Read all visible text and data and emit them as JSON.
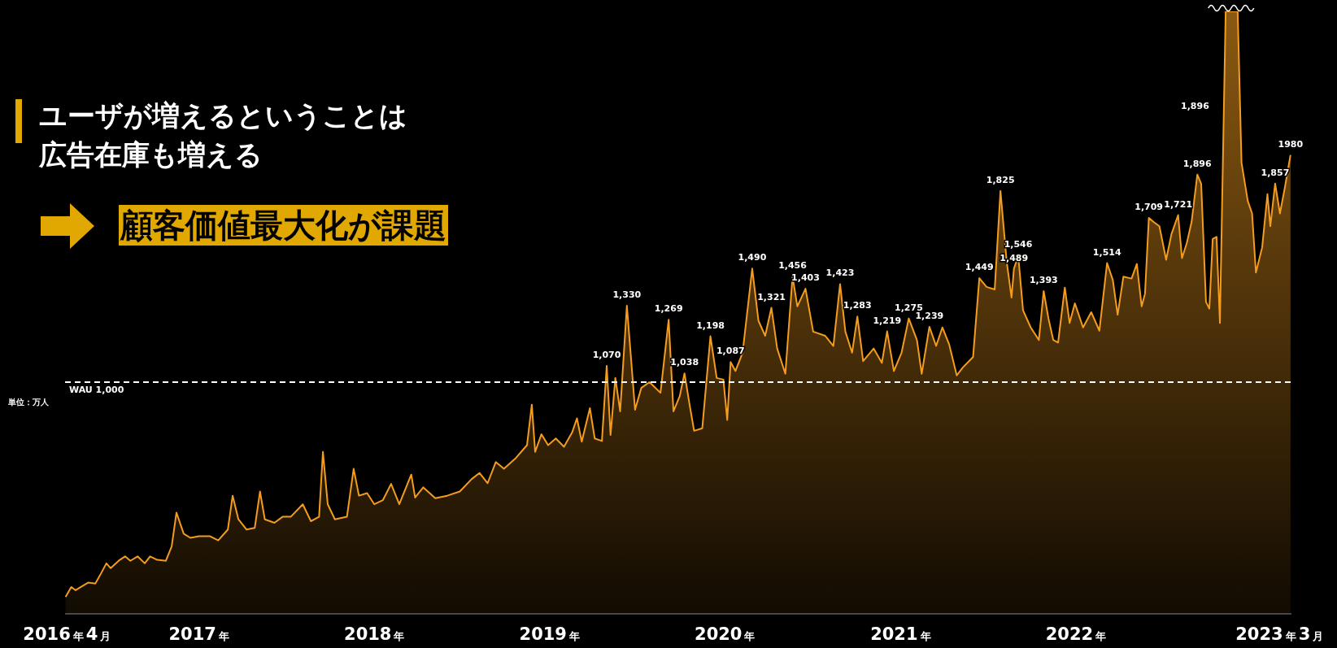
{
  "chart_data": {
    "type": "area",
    "title": "ユーザが増えるということは広告在庫も増える",
    "subtitle": "顧客価値最大化が課題",
    "color": "#f39c1e",
    "marker": "none",
    "line_style": "solid",
    "xlim": [
      "2016-03-28",
      "2023-03-26"
    ],
    "xticks": [
      {
        "value": "2016-04-01",
        "label": "2016年4月"
      },
      {
        "value": "2017-01-01",
        "label": "2017年"
      },
      {
        "value": "2018-01-01",
        "label": "2018年"
      },
      {
        "value": "2019-01-01",
        "label": "2019年"
      },
      {
        "value": "2020-01-01",
        "label": "2020年"
      },
      {
        "value": "2021-01-01",
        "label": "2021年"
      },
      {
        "value": "2022-01-01",
        "label": "2022年"
      },
      {
        "value": "2023-03-01",
        "label": "2023年3月"
      }
    ],
    "ref_lines": [
      {
        "axis": "y",
        "value": 1000,
        "label": "WAU 1,000",
        "color": "#ffffff",
        "line_style": "dashed"
      }
    ],
    "annotations": [
      "単位：万人",
      "1,896"
    ],
    "x": [
      "2016-03-29",
      "2016-04-10",
      "2016-04-19",
      "2016-04-30",
      "2016-05-15",
      "2016-05-30",
      "2016-06-11",
      "2016-06-22",
      "2016-07-01",
      "2016-07-20",
      "2016-07-31",
      "2016-08-11",
      "2016-08-26",
      "2016-09-10",
      "2016-09-21",
      "2016-10-06",
      "2016-10-24",
      "2016-11-05",
      "2016-11-15",
      "2016-11-30",
      "2016-12-14",
      "2017-01-01",
      "2017-01-24",
      "2017-02-10",
      "2017-03-02",
      "2017-03-12",
      "2017-03-24",
      "2017-04-10",
      "2017-04-27",
      "2017-05-08",
      "2017-05-18",
      "2017-06-07",
      "2017-06-24",
      "2017-07-11",
      "2017-08-05",
      "2017-08-22",
      "2017-09-08",
      "2017-09-16",
      "2017-09-26",
      "2017-10-11",
      "2017-11-05",
      "2017-11-19",
      "2017-11-30",
      "2017-12-17",
      "2018-01-01",
      "2018-01-19",
      "2018-02-05",
      "2018-02-22",
      "2018-03-19",
      "2018-03-27",
      "2018-04-13",
      "2018-05-08",
      "2018-06-02",
      "2018-06-28",
      "2018-07-23",
      "2018-08-08",
      "2018-08-25",
      "2018-09-11",
      "2018-09-28",
      "2018-10-23",
      "2018-11-15",
      "2018-11-25",
      "2018-12-02",
      "2018-12-15",
      "2018-12-29",
      "2019-01-14",
      "2019-01-31",
      "2019-02-17",
      "2019-02-27",
      "2019-03-09",
      "2019-03-26",
      "2019-04-05",
      "2019-04-20",
      "2019-04-30",
      "2019-05-08",
      "2019-05-18",
      "2019-05-28",
      "2019-06-11",
      "2019-06-28",
      "2019-07-11",
      "2019-07-28",
      "2019-08-20",
      "2019-09-06",
      "2019-09-16",
      "2019-09-29",
      "2019-10-09",
      "2019-10-19",
      "2019-10-29",
      "2019-11-15",
      "2019-12-02",
      "2019-12-15",
      "2019-12-29",
      "2020-01-06",
      "2020-01-13",
      "2020-01-23",
      "2020-02-07",
      "2020-02-27",
      "2020-03-11",
      "2020-03-25",
      "2020-04-07",
      "2020-04-19",
      "2020-05-06",
      "2020-05-21",
      "2020-05-31",
      "2020-06-17",
      "2020-07-03",
      "2020-07-28",
      "2020-08-14",
      "2020-08-28",
      "2020-09-08",
      "2020-09-22",
      "2020-10-03",
      "2020-10-15",
      "2020-11-06",
      "2020-11-23",
      "2020-12-04",
      "2020-12-18",
      "2021-01-03",
      "2021-01-18",
      "2021-02-04",
      "2021-02-14",
      "2021-03-02",
      "2021-03-16",
      "2021-03-29",
      "2021-04-12",
      "2021-04-28",
      "2021-05-10",
      "2021-06-01",
      "2021-06-14",
      "2021-06-29",
      "2021-07-16",
      "2021-07-28",
      "2021-08-10",
      "2021-08-20",
      "2021-08-25",
      "2021-09-03",
      "2021-09-13",
      "2021-09-29",
      "2021-10-16",
      "2021-10-26",
      "2021-11-05",
      "2021-11-15",
      "2021-11-25",
      "2021-12-09",
      "2021-12-19",
      "2021-12-30",
      "2022-01-16",
      "2022-02-02",
      "2022-02-19",
      "2022-03-07",
      "2022-03-19",
      "2022-03-29",
      "2022-04-10",
      "2022-04-27",
      "2022-05-08",
      "2022-05-18",
      "2022-05-25",
      "2022-06-02",
      "2022-06-12",
      "2022-06-24",
      "2022-07-08",
      "2022-07-19",
      "2022-08-02",
      "2022-08-10",
      "2022-08-20",
      "2022-08-30",
      "2022-09-11",
      "2022-09-19",
      "2022-09-29",
      "2022-10-06",
      "2022-10-13",
      "2022-10-21",
      "2022-10-28",
      "2022-11-09",
      "2022-11-22",
      "2022-12-04",
      "2022-12-12",
      "2022-12-25",
      "2023-01-03",
      "2023-01-11",
      "2023-01-24",
      "2023-02-04",
      "2023-02-10",
      "2023-02-20",
      "2023-03-02",
      "2023-03-12",
      "2023-03-24"
    ],
    "values": [
      73,
      116,
      102,
      116,
      135,
      131,
      175,
      218,
      197,
      233,
      248,
      229,
      248,
      218,
      248,
      233,
      229,
      291,
      437,
      346,
      328,
      335,
      335,
      317,
      364,
      510,
      408,
      364,
      371,
      528,
      408,
      393,
      419,
      419,
      473,
      400,
      419,
      699,
      473,
      408,
      419,
      626,
      510,
      521,
      473,
      491,
      561,
      473,
      601,
      502,
      546,
      499,
      510,
      528,
      582,
      608,
      564,
      655,
      626,
      673,
      728,
      903,
      699,
      775,
      728,
      757,
      721,
      783,
      844,
      743,
      888,
      757,
      746,
      1070,
      772,
      1018,
      874,
      1330,
      881,
      975,
      1000,
      954,
      1269,
      874,
      939,
      1038,
      910,
      790,
      801,
      1198,
      1018,
      1011,
      837,
      1087,
      1048,
      1127,
      1490,
      1265,
      1200,
      1321,
      1145,
      1036,
      1456,
      1327,
      1403,
      1218,
      1200,
      1156,
      1423,
      1218,
      1127,
      1283,
      1091,
      1145,
      1083,
      1219,
      1048,
      1127,
      1275,
      1182,
      1036,
      1239,
      1156,
      1236,
      1164,
      1029,
      1062,
      1109,
      1449,
      1411,
      1400,
      1825,
      1520,
      1365,
      1489,
      1546,
      1310,
      1236,
      1182,
      1393,
      1274,
      1182,
      1171,
      1408,
      1255,
      1340,
      1236,
      1302,
      1222,
      1514,
      1441,
      1291,
      1455,
      1447,
      1510,
      1327,
      1382,
      1709,
      1691,
      1673,
      1528,
      1638,
      1721,
      1535,
      1600,
      1691,
      1896,
      1856,
      1346,
      1317,
      1618,
      1627,
      1255,
      2600,
      2600,
      2600,
      1947,
      1782,
      1728,
      1473,
      1582,
      1811,
      1673,
      1857,
      1728,
      1837,
      1980
    ],
    "value_labels": [
      null,
      null,
      null,
      null,
      null,
      null,
      null,
      null,
      null,
      null,
      null,
      null,
      null,
      null,
      null,
      null,
      null,
      null,
      null,
      null,
      null,
      null,
      null,
      null,
      null,
      null,
      null,
      null,
      null,
      null,
      null,
      null,
      null,
      null,
      null,
      null,
      null,
      null,
      null,
      null,
      null,
      null,
      null,
      null,
      null,
      null,
      null,
      null,
      null,
      null,
      null,
      null,
      null,
      null,
      null,
      null,
      null,
      null,
      null,
      null,
      null,
      null,
      null,
      null,
      null,
      null,
      null,
      null,
      null,
      null,
      null,
      null,
      null,
      "1,070",
      null,
      null,
      null,
      "1,330",
      null,
      null,
      null,
      null,
      "1,269",
      null,
      null,
      "1,038",
      null,
      null,
      null,
      "1,198",
      null,
      null,
      null,
      "1,087",
      null,
      null,
      "1,490",
      null,
      null,
      "1,321",
      null,
      null,
      "1,456",
      null,
      "1,403",
      null,
      null,
      null,
      "1,423",
      null,
      null,
      "1,283",
      null,
      null,
      null,
      "1,219",
      null,
      null,
      "1,275",
      null,
      null,
      "1,239",
      null,
      null,
      null,
      null,
      null,
      null,
      "1,449",
      null,
      null,
      "1,825",
      null,
      null,
      "1,489",
      "1,546",
      null,
      null,
      null,
      "1,393",
      null,
      null,
      null,
      null,
      null,
      null,
      null,
      null,
      null,
      "1,514",
      null,
      null,
      null,
      null,
      null,
      null,
      null,
      "1,709",
      null,
      null,
      null,
      null,
      "1,721",
      null,
      null,
      null,
      "1,896",
      null,
      null,
      null,
      null,
      null,
      null,
      null,
      null,
      null,
      null,
      null,
      null,
      null,
      null,
      null,
      null,
      "1,857",
      null,
      null,
      "1980"
    ]
  }
}
